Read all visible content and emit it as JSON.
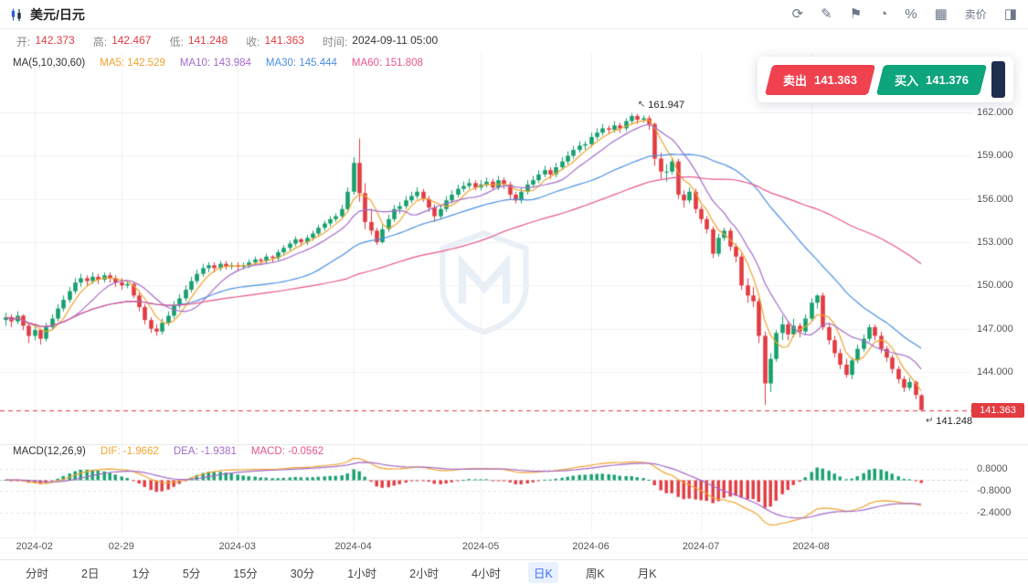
{
  "header": {
    "title": "美元/日元",
    "toolbar": {
      "icons": [
        {
          "name": "refresh-icon",
          "glyph": "⟳"
        },
        {
          "name": "draw-tools-icon",
          "glyph": "✎"
        },
        {
          "name": "flag-icon",
          "glyph": "⚑"
        },
        {
          "name": "clock-icon",
          "glyph": "◔"
        },
        {
          "name": "percent-icon",
          "glyph": "%"
        },
        {
          "name": "grid-layout-icon",
          "glyph": "▦"
        },
        {
          "name": "sell-price-toggle",
          "glyph": "卖价",
          "type": "text"
        },
        {
          "name": "panel-icon",
          "glyph": "◨"
        }
      ]
    }
  },
  "info_bar": {
    "open_label": "开:",
    "open": "142.373",
    "high_label": "高:",
    "high": "142.467",
    "low_label": "低:",
    "low": "141.248",
    "close_label": "收:",
    "close": "141.363",
    "time_label": "时间:",
    "time": "2024-09-11 05:00"
  },
  "ma_legend": {
    "title": "MA(5,10,30,60)",
    "items": [
      {
        "name": "ma5-value",
        "text": "MA5: 142.529",
        "color": "#f0a32f"
      },
      {
        "name": "ma10-value",
        "text": "MA10: 143.984",
        "color": "#a36bc9"
      },
      {
        "name": "ma30-value",
        "text": "MA30: 145.444",
        "color": "#4a8fe2"
      },
      {
        "name": "ma60-value",
        "text": "MA60: 151.808",
        "color": "#e8558f"
      }
    ]
  },
  "macd_legend": {
    "title": "MACD(12,26,9)",
    "items": [
      {
        "name": "dif-value",
        "text": "DIF: -1.9662",
        "color": "#f0a32f"
      },
      {
        "name": "dea-value",
        "text": "DEA: -1.9381",
        "color": "#a36bc9"
      },
      {
        "name": "macd-value",
        "text": "MACD: -0.0562",
        "color": "#e8558f"
      }
    ]
  },
  "trade_panel": {
    "sell_label": "卖出",
    "sell_price": "141.363",
    "buy_label": "买入",
    "buy_price": "141.376"
  },
  "tabs": {
    "items": [
      "分时",
      "2日",
      "1分",
      "5分",
      "15分",
      "30分",
      "1小时",
      "2小时",
      "4小时",
      "日K",
      "周K",
      "月K"
    ],
    "selected": "日K"
  },
  "chart_data": {
    "type": "candlestick",
    "title": "美元/日元",
    "timeframe": "日K",
    "colors": {
      "up": "#16a06d",
      "down": "#e23b41"
    },
    "last_price": 141.363,
    "last_price_label": "141.363",
    "y_axis": {
      "range": [
        140.0,
        166.0
      ],
      "ticks": [
        162,
        159,
        156,
        153,
        150,
        147,
        144
      ],
      "tick_labels": [
        "162.000",
        "159.000",
        "156.000",
        "153.000",
        "150.000",
        "147.000",
        "144.000"
      ]
    },
    "x_ticks": [
      {
        "index": 5,
        "label": "2024-02"
      },
      {
        "index": 20,
        "label": "02-29"
      },
      {
        "index": 40,
        "label": "2024-03"
      },
      {
        "index": 60,
        "label": "2024-04"
      },
      {
        "index": 82,
        "label": "2024-05"
      },
      {
        "index": 101,
        "label": "2024-06"
      },
      {
        "index": 120,
        "label": "2024-07"
      },
      {
        "index": 139,
        "label": "2024-08"
      }
    ],
    "overlays": [
      {
        "period": 5,
        "color": "#f0a32f"
      },
      {
        "period": 10,
        "color": "#a36bc9"
      },
      {
        "period": 30,
        "color": "#4a8fe2"
      },
      {
        "period": 60,
        "color": "#e8558f"
      }
    ],
    "macd": {
      "params": [
        12,
        26,
        9
      ],
      "range": [
        -3.93,
        1.67
      ],
      "ticks": [
        {
          "value": 0.8,
          "label": "0.8000"
        },
        {
          "value": -0.8,
          "label": "-0.8000"
        },
        {
          "value": -2.4,
          "label": "-2.4000"
        }
      ]
    },
    "annotations": [
      {
        "type": "high",
        "index": 108,
        "price": 161.947,
        "label": "161.947",
        "arrow": "↖"
      },
      {
        "type": "low",
        "index": 158,
        "price": 141.248,
        "label": "141.248",
        "arrow": "↵"
      }
    ],
    "candles": [
      [
        147.6,
        148.1,
        147.2,
        147.8
      ],
      [
        147.8,
        148.0,
        147.1,
        147.5
      ],
      [
        147.5,
        148.2,
        147.3,
        147.9
      ],
      [
        147.9,
        148.0,
        146.9,
        147.2
      ],
      [
        147.2,
        147.4,
        146.0,
        146.5
      ],
      [
        146.5,
        147.2,
        146.2,
        146.9
      ],
      [
        146.9,
        147.0,
        145.9,
        146.3
      ],
      [
        146.3,
        147.4,
        146.1,
        147.1
      ],
      [
        147.1,
        148.0,
        146.9,
        147.7
      ],
      [
        147.7,
        148.7,
        147.5,
        148.4
      ],
      [
        148.4,
        149.3,
        148.2,
        149.0
      ],
      [
        149.0,
        149.9,
        148.8,
        149.6
      ],
      [
        149.6,
        150.5,
        149.4,
        150.2
      ],
      [
        150.2,
        150.8,
        149.9,
        150.5
      ],
      [
        150.5,
        150.7,
        150.0,
        150.3
      ],
      [
        150.3,
        150.9,
        150.1,
        150.6
      ],
      [
        150.6,
        150.8,
        150.1,
        150.4
      ],
      [
        150.4,
        150.9,
        150.2,
        150.7
      ],
      [
        150.7,
        150.9,
        150.2,
        150.5
      ],
      [
        150.5,
        150.7,
        149.9,
        150.2
      ],
      [
        150.2,
        150.5,
        149.7,
        150.0
      ],
      [
        150.0,
        150.3,
        149.8,
        150.1
      ],
      [
        150.1,
        150.2,
        149.1,
        149.3
      ],
      [
        149.3,
        149.5,
        148.2,
        148.5
      ],
      [
        148.5,
        148.7,
        147.3,
        147.6
      ],
      [
        147.6,
        147.8,
        146.7,
        147.0
      ],
      [
        147.0,
        147.3,
        146.5,
        146.8
      ],
      [
        146.8,
        147.7,
        146.6,
        147.4
      ],
      [
        147.4,
        148.2,
        147.2,
        147.9
      ],
      [
        147.9,
        148.9,
        147.7,
        148.6
      ],
      [
        148.6,
        149.4,
        148.4,
        149.1
      ],
      [
        149.1,
        150.0,
        148.9,
        149.7
      ],
      [
        149.7,
        150.6,
        149.5,
        150.3
      ],
      [
        150.3,
        151.1,
        150.1,
        150.8
      ],
      [
        150.8,
        151.5,
        150.6,
        151.2
      ],
      [
        151.2,
        151.6,
        150.9,
        151.4
      ],
      [
        151.4,
        151.6,
        150.9,
        151.2
      ],
      [
        151.2,
        151.7,
        151.0,
        151.5
      ],
      [
        151.5,
        151.7,
        151.1,
        151.3
      ],
      [
        151.3,
        151.6,
        151.1,
        151.4
      ],
      [
        151.4,
        151.6,
        151.0,
        151.3
      ],
      [
        151.3,
        151.6,
        151.1,
        151.4
      ],
      [
        151.4,
        151.8,
        151.2,
        151.6
      ],
      [
        151.6,
        152.0,
        151.4,
        151.8
      ],
      [
        151.8,
        151.9,
        151.4,
        151.7
      ],
      [
        151.7,
        152.2,
        151.5,
        152.0
      ],
      [
        152.0,
        152.1,
        151.6,
        151.9
      ],
      [
        151.9,
        152.5,
        151.7,
        152.3
      ],
      [
        152.3,
        152.8,
        152.1,
        152.6
      ],
      [
        152.6,
        153.1,
        152.4,
        152.9
      ],
      [
        152.9,
        153.4,
        152.7,
        153.2
      ],
      [
        153.2,
        153.3,
        152.7,
        153.0
      ],
      [
        153.0,
        153.5,
        152.8,
        153.3
      ],
      [
        153.3,
        153.8,
        153.1,
        153.6
      ],
      [
        153.6,
        154.2,
        153.4,
        154.0
      ],
      [
        154.0,
        154.5,
        153.8,
        154.3
      ],
      [
        154.3,
        154.8,
        154.1,
        154.6
      ],
      [
        154.6,
        155.0,
        154.4,
        154.8
      ],
      [
        154.8,
        155.6,
        154.6,
        155.3
      ],
      [
        155.3,
        156.8,
        155.1,
        156.5
      ],
      [
        156.5,
        158.9,
        156.3,
        158.5
      ],
      [
        158.5,
        160.2,
        155.8,
        156.4
      ],
      [
        156.4,
        157.1,
        153.9,
        154.4
      ],
      [
        154.4,
        155.3,
        153.5,
        153.8
      ],
      [
        153.8,
        154.0,
        152.8,
        153.0
      ],
      [
        153.0,
        154.2,
        152.9,
        153.9
      ],
      [
        153.9,
        154.9,
        153.7,
        154.6
      ],
      [
        154.6,
        155.6,
        154.4,
        155.3
      ],
      [
        155.3,
        155.8,
        155.0,
        155.5
      ],
      [
        155.5,
        156.2,
        155.3,
        155.9
      ],
      [
        155.9,
        156.5,
        155.7,
        156.2
      ],
      [
        156.2,
        156.8,
        156.0,
        156.5
      ],
      [
        156.5,
        156.7,
        155.8,
        156.0
      ],
      [
        156.0,
        156.2,
        155.1,
        155.4
      ],
      [
        155.4,
        155.6,
        154.4,
        154.8
      ],
      [
        154.8,
        155.6,
        154.6,
        155.3
      ],
      [
        155.3,
        156.2,
        155.1,
        155.9
      ],
      [
        155.9,
        156.6,
        155.7,
        156.3
      ],
      [
        156.3,
        157.0,
        156.1,
        156.7
      ],
      [
        156.7,
        157.2,
        156.5,
        156.9
      ],
      [
        156.9,
        157.4,
        156.7,
        157.1
      ],
      [
        157.1,
        157.3,
        156.6,
        156.8
      ],
      [
        156.8,
        157.3,
        156.6,
        157.0
      ],
      [
        157.0,
        157.5,
        156.8,
        157.2
      ],
      [
        157.2,
        157.4,
        156.6,
        156.8
      ],
      [
        156.8,
        157.6,
        156.6,
        157.3
      ],
      [
        157.3,
        157.5,
        156.7,
        157.0
      ],
      [
        157.0,
        157.2,
        156.0,
        156.3
      ],
      [
        156.3,
        156.5,
        155.7,
        155.9
      ],
      [
        155.9,
        156.8,
        155.7,
        156.5
      ],
      [
        156.5,
        157.3,
        156.3,
        157.0
      ],
      [
        157.0,
        157.6,
        156.8,
        157.3
      ],
      [
        157.3,
        158.0,
        157.1,
        157.7
      ],
      [
        157.7,
        158.3,
        157.5,
        158.0
      ],
      [
        158.0,
        158.2,
        157.4,
        157.7
      ],
      [
        157.7,
        158.5,
        157.5,
        158.2
      ],
      [
        158.2,
        158.9,
        158.0,
        158.6
      ],
      [
        158.6,
        159.3,
        158.4,
        159.0
      ],
      [
        159.0,
        159.7,
        158.8,
        159.4
      ],
      [
        159.4,
        160.0,
        159.2,
        159.7
      ],
      [
        159.7,
        160.0,
        159.4,
        159.8
      ],
      [
        159.8,
        160.6,
        159.6,
        160.3
      ],
      [
        160.3,
        160.9,
        160.1,
        160.6
      ],
      [
        160.6,
        161.2,
        160.4,
        160.9
      ],
      [
        160.9,
        161.1,
        160.5,
        160.8
      ],
      [
        160.8,
        161.4,
        160.6,
        161.1
      ],
      [
        161.1,
        161.3,
        160.6,
        160.9
      ],
      [
        160.9,
        161.6,
        160.7,
        161.4
      ],
      [
        161.4,
        161.947,
        161.2,
        161.75
      ],
      [
        161.75,
        161.9,
        161.2,
        161.5
      ],
      [
        161.5,
        161.8,
        161.3,
        161.6
      ],
      [
        161.6,
        161.8,
        160.8,
        161.2
      ],
      [
        161.2,
        161.3,
        158.3,
        158.8
      ],
      [
        158.8,
        159.2,
        157.4,
        157.9
      ],
      [
        157.9,
        158.4,
        157.2,
        157.9
      ],
      [
        157.9,
        158.9,
        157.7,
        158.6
      ],
      [
        158.6,
        158.8,
        156.0,
        156.3
      ],
      [
        156.3,
        156.6,
        155.4,
        155.9
      ],
      [
        155.9,
        156.8,
        155.7,
        156.5
      ],
      [
        156.5,
        156.7,
        155.0,
        155.3
      ],
      [
        155.3,
        155.5,
        154.3,
        154.6
      ],
      [
        154.6,
        154.8,
        153.6,
        153.9
      ],
      [
        153.9,
        154.1,
        151.9,
        152.2
      ],
      [
        152.2,
        153.6,
        152.0,
        153.3
      ],
      [
        153.3,
        154.0,
        153.1,
        153.8
      ],
      [
        153.8,
        154.0,
        152.4,
        152.7
      ],
      [
        152.7,
        152.9,
        151.6,
        152.0
      ],
      [
        152.0,
        152.2,
        149.7,
        150.0
      ],
      [
        150.0,
        150.5,
        148.8,
        149.3
      ],
      [
        149.3,
        149.9,
        148.5,
        148.9
      ],
      [
        148.9,
        149.1,
        146.0,
        146.5
      ],
      [
        146.5,
        146.8,
        141.7,
        143.2
      ],
      [
        143.2,
        145.3,
        142.6,
        144.9
      ],
      [
        144.9,
        146.9,
        144.7,
        146.7
      ],
      [
        146.7,
        147.9,
        146.2,
        147.3
      ],
      [
        147.3,
        147.5,
        146.2,
        146.6
      ],
      [
        146.6,
        147.7,
        146.4,
        147.2
      ],
      [
        147.2,
        147.4,
        146.4,
        146.8
      ],
      [
        146.8,
        148.0,
        146.6,
        147.7
      ],
      [
        147.7,
        149.1,
        147.5,
        148.8
      ],
      [
        148.8,
        149.4,
        148.4,
        149.3
      ],
      [
        149.3,
        149.5,
        146.9,
        147.1
      ],
      [
        147.1,
        147.4,
        145.9,
        146.2
      ],
      [
        146.2,
        146.5,
        145.0,
        145.3
      ],
      [
        145.3,
        145.6,
        144.2,
        144.5
      ],
      [
        144.5,
        144.9,
        143.6,
        143.8
      ],
      [
        143.8,
        145.0,
        143.5,
        144.8
      ],
      [
        144.8,
        145.9,
        144.6,
        145.6
      ],
      [
        145.6,
        146.6,
        145.4,
        146.3
      ],
      [
        146.3,
        147.3,
        146.1,
        147.1
      ],
      [
        147.1,
        147.3,
        146.2,
        146.5
      ],
      [
        146.5,
        146.8,
        145.3,
        145.6
      ],
      [
        145.6,
        145.8,
        144.7,
        145.0
      ],
      [
        145.0,
        145.2,
        143.9,
        144.2
      ],
      [
        144.2,
        144.4,
        143.2,
        143.5
      ],
      [
        143.5,
        143.7,
        142.6,
        142.9
      ],
      [
        142.9,
        143.6,
        142.7,
        143.3
      ],
      [
        143.3,
        143.4,
        142.1,
        142.4
      ],
      [
        142.373,
        142.467,
        141.248,
        141.363
      ]
    ]
  }
}
